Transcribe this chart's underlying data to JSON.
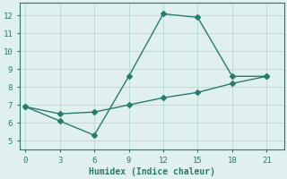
{
  "xlabel": "Humidex (Indice chaleur)",
  "line1_x": [
    0,
    3,
    6,
    9,
    12,
    15,
    18,
    21
  ],
  "line1_y": [
    6.9,
    6.1,
    5.3,
    8.6,
    12.1,
    11.9,
    8.6,
    8.6
  ],
  "line2_x": [
    0,
    3,
    6,
    9,
    12,
    15,
    18,
    21
  ],
  "line2_y": [
    6.9,
    6.5,
    6.6,
    7.0,
    7.4,
    7.7,
    8.2,
    8.6
  ],
  "line_color": "#2a7a6e",
  "bg_color": "#dff0ee",
  "grid_color": "#b8ddd8",
  "xlim": [
    -0.5,
    22.5
  ],
  "ylim": [
    4.5,
    12.7
  ],
  "xticks": [
    0,
    3,
    6,
    9,
    12,
    15,
    18,
    21
  ],
  "yticks": [
    5,
    6,
    7,
    8,
    9,
    10,
    11,
    12
  ],
  "markersize": 3,
  "linewidth": 1.0,
  "tick_fontsize": 6.5,
  "xlabel_fontsize": 7.0
}
